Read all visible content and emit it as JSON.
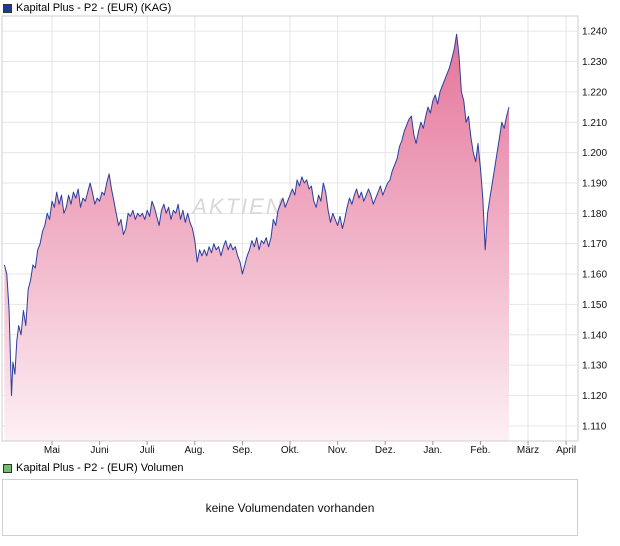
{
  "colors": {
    "line": "#2a3f9e",
    "fill_top": "#e4749a",
    "fill_bottom": "#fdf0f5",
    "price_swatch": "#1f3a93",
    "volume_swatch": "#6fbf6f",
    "grid": "#e6e6e6"
  },
  "price_legend": {
    "label": "Kapital Plus - P2 - (EUR) (KAG)"
  },
  "volume_legend": {
    "label": "Kapital Plus - P2 - (EUR) Volumen"
  },
  "volume_panel": {
    "message": "keine Volumendaten vorhanden"
  },
  "watermark": {
    "text": "AKTIEN"
  },
  "chart_data": {
    "type": "area",
    "title": "Kapital Plus - P2 - (EUR) (KAG)",
    "xlabel": "",
    "ylabel": "",
    "ylim": [
      1.105,
      1.245
    ],
    "grid": true,
    "y_ticks": [
      "1.110",
      "1.120",
      "1.130",
      "1.140",
      "1.150",
      "1.160",
      "1.170",
      "1.180",
      "1.190",
      "1.200",
      "1.210",
      "1.220",
      "1.230",
      "1.240"
    ],
    "x_ticks": [
      "Mai",
      "Juni",
      "Juli",
      "Aug.",
      "Sep.",
      "Okt.",
      "Nov.",
      "Dez.",
      "Jan.",
      "Feb.",
      "März",
      "April"
    ],
    "x_tick_positions": [
      0.5,
      1.5,
      2.5,
      3.5,
      4.5,
      5.5,
      6.5,
      7.5,
      8.5,
      9.5,
      10.5,
      11.3
    ],
    "x_range": [
      -0.55,
      11.55
    ],
    "series": [
      {
        "points": [
          [
            -0.5,
            1.163
          ],
          [
            -0.45,
            1.16
          ],
          [
            -0.4,
            1.148
          ],
          [
            -0.35,
            1.12
          ],
          [
            -0.32,
            1.131
          ],
          [
            -0.28,
            1.127
          ],
          [
            -0.24,
            1.138
          ],
          [
            -0.2,
            1.143
          ],
          [
            -0.15,
            1.14
          ],
          [
            -0.1,
            1.148
          ],
          [
            -0.05,
            1.143
          ],
          [
            0.0,
            1.155
          ],
          [
            0.05,
            1.158
          ],
          [
            0.1,
            1.163
          ],
          [
            0.15,
            1.162
          ],
          [
            0.2,
            1.168
          ],
          [
            0.25,
            1.17
          ],
          [
            0.3,
            1.174
          ],
          [
            0.35,
            1.176
          ],
          [
            0.4,
            1.18
          ],
          [
            0.45,
            1.178
          ],
          [
            0.5,
            1.184
          ],
          [
            0.55,
            1.182
          ],
          [
            0.6,
            1.187
          ],
          [
            0.65,
            1.183
          ],
          [
            0.7,
            1.186
          ],
          [
            0.75,
            1.18
          ],
          [
            0.8,
            1.182
          ],
          [
            0.85,
            1.186
          ],
          [
            0.9,
            1.183
          ],
          [
            0.95,
            1.187
          ],
          [
            1.0,
            1.185
          ],
          [
            1.05,
            1.188
          ],
          [
            1.1,
            1.182
          ],
          [
            1.15,
            1.185
          ],
          [
            1.2,
            1.184
          ],
          [
            1.25,
            1.187
          ],
          [
            1.3,
            1.19
          ],
          [
            1.35,
            1.187
          ],
          [
            1.4,
            1.183
          ],
          [
            1.45,
            1.185
          ],
          [
            1.5,
            1.184
          ],
          [
            1.55,
            1.187
          ],
          [
            1.6,
            1.186
          ],
          [
            1.65,
            1.19
          ],
          [
            1.7,
            1.193
          ],
          [
            1.75,
            1.188
          ],
          [
            1.8,
            1.184
          ],
          [
            1.85,
            1.18
          ],
          [
            1.9,
            1.176
          ],
          [
            1.95,
            1.178
          ],
          [
            2.0,
            1.173
          ],
          [
            2.05,
            1.175
          ],
          [
            2.1,
            1.18
          ],
          [
            2.15,
            1.179
          ],
          [
            2.2,
            1.181
          ],
          [
            2.25,
            1.178
          ],
          [
            2.3,
            1.18
          ],
          [
            2.35,
            1.179
          ],
          [
            2.4,
            1.18
          ],
          [
            2.45,
            1.178
          ],
          [
            2.5,
            1.181
          ],
          [
            2.55,
            1.179
          ],
          [
            2.6,
            1.184
          ],
          [
            2.65,
            1.182
          ],
          [
            2.7,
            1.179
          ],
          [
            2.75,
            1.176
          ],
          [
            2.8,
            1.181
          ],
          [
            2.85,
            1.183
          ],
          [
            2.9,
            1.18
          ],
          [
            2.95,
            1.182
          ],
          [
            3.0,
            1.178
          ],
          [
            3.05,
            1.181
          ],
          [
            3.1,
            1.18
          ],
          [
            3.15,
            1.183
          ],
          [
            3.2,
            1.178
          ],
          [
            3.25,
            1.181
          ],
          [
            3.3,
            1.177
          ],
          [
            3.35,
            1.18
          ],
          [
            3.4,
            1.177
          ],
          [
            3.45,
            1.175
          ],
          [
            3.5,
            1.171
          ],
          [
            3.55,
            1.164
          ],
          [
            3.6,
            1.168
          ],
          [
            3.65,
            1.166
          ],
          [
            3.7,
            1.168
          ],
          [
            3.75,
            1.166
          ],
          [
            3.8,
            1.169
          ],
          [
            3.85,
            1.167
          ],
          [
            3.9,
            1.17
          ],
          [
            3.95,
            1.168
          ],
          [
            4.0,
            1.169
          ],
          [
            4.05,
            1.166
          ],
          [
            4.1,
            1.169
          ],
          [
            4.15,
            1.171
          ],
          [
            4.2,
            1.168
          ],
          [
            4.25,
            1.17
          ],
          [
            4.3,
            1.168
          ],
          [
            4.35,
            1.169
          ],
          [
            4.4,
            1.166
          ],
          [
            4.45,
            1.164
          ],
          [
            4.5,
            1.16
          ],
          [
            4.55,
            1.163
          ],
          [
            4.6,
            1.166
          ],
          [
            4.65,
            1.168
          ],
          [
            4.7,
            1.171
          ],
          [
            4.75,
            1.169
          ],
          [
            4.8,
            1.172
          ],
          [
            4.85,
            1.168
          ],
          [
            4.9,
            1.171
          ],
          [
            4.95,
            1.17
          ],
          [
            5.0,
            1.172
          ],
          [
            5.05,
            1.169
          ],
          [
            5.1,
            1.172
          ],
          [
            5.15,
            1.178
          ],
          [
            5.2,
            1.176
          ],
          [
            5.25,
            1.181
          ],
          [
            5.3,
            1.183
          ],
          [
            5.35,
            1.185
          ],
          [
            5.4,
            1.182
          ],
          [
            5.45,
            1.184
          ],
          [
            5.5,
            1.186
          ],
          [
            5.55,
            1.188
          ],
          [
            5.6,
            1.186
          ],
          [
            5.65,
            1.191
          ],
          [
            5.7,
            1.189
          ],
          [
            5.75,
            1.192
          ],
          [
            5.8,
            1.19
          ],
          [
            5.85,
            1.191
          ],
          [
            5.9,
            1.188
          ],
          [
            5.95,
            1.189
          ],
          [
            6.0,
            1.184
          ],
          [
            6.05,
            1.182
          ],
          [
            6.1,
            1.186
          ],
          [
            6.15,
            1.184
          ],
          [
            6.2,
            1.19
          ],
          [
            6.25,
            1.187
          ],
          [
            6.3,
            1.181
          ],
          [
            6.35,
            1.177
          ],
          [
            6.4,
            1.18
          ],
          [
            6.45,
            1.178
          ],
          [
            6.5,
            1.176
          ],
          [
            6.55,
            1.179
          ],
          [
            6.6,
            1.175
          ],
          [
            6.65,
            1.178
          ],
          [
            6.7,
            1.182
          ],
          [
            6.75,
            1.185
          ],
          [
            6.8,
            1.183
          ],
          [
            6.85,
            1.186
          ],
          [
            6.9,
            1.188
          ],
          [
            6.95,
            1.185
          ],
          [
            7.0,
            1.187
          ],
          [
            7.05,
            1.184
          ],
          [
            7.1,
            1.186
          ],
          [
            7.15,
            1.188
          ],
          [
            7.2,
            1.186
          ],
          [
            7.25,
            1.183
          ],
          [
            7.3,
            1.185
          ],
          [
            7.35,
            1.187
          ],
          [
            7.4,
            1.189
          ],
          [
            7.45,
            1.186
          ],
          [
            7.5,
            1.188
          ],
          [
            7.55,
            1.19
          ],
          [
            7.6,
            1.191
          ],
          [
            7.65,
            1.194
          ],
          [
            7.7,
            1.196
          ],
          [
            7.75,
            1.198
          ],
          [
            7.8,
            1.202
          ],
          [
            7.85,
            1.204
          ],
          [
            7.9,
            1.207
          ],
          [
            7.95,
            1.209
          ],
          [
            8.0,
            1.211
          ],
          [
            8.05,
            1.212
          ],
          [
            8.1,
            1.206
          ],
          [
            8.15,
            1.203
          ],
          [
            8.2,
            1.207
          ],
          [
            8.25,
            1.21
          ],
          [
            8.3,
            1.208
          ],
          [
            8.35,
            1.212
          ],
          [
            8.4,
            1.215
          ],
          [
            8.45,
            1.213
          ],
          [
            8.5,
            1.217
          ],
          [
            8.55,
            1.219
          ],
          [
            8.6,
            1.216
          ],
          [
            8.65,
            1.22
          ],
          [
            8.7,
            1.222
          ],
          [
            8.75,
            1.224
          ],
          [
            8.8,
            1.226
          ],
          [
            8.85,
            1.228
          ],
          [
            8.9,
            1.231
          ],
          [
            8.95,
            1.234
          ],
          [
            9.0,
            1.239
          ],
          [
            9.05,
            1.232
          ],
          [
            9.1,
            1.22
          ],
          [
            9.15,
            1.217
          ],
          [
            9.2,
            1.21
          ],
          [
            9.25,
            1.212
          ],
          [
            9.3,
            1.205
          ],
          [
            9.35,
            1.2
          ],
          [
            9.4,
            1.197
          ],
          [
            9.45,
            1.203
          ],
          [
            9.5,
            1.195
          ],
          [
            9.55,
            1.185
          ],
          [
            9.6,
            1.168
          ],
          [
            9.65,
            1.18
          ],
          [
            9.7,
            1.185
          ],
          [
            9.75,
            1.19
          ],
          [
            9.8,
            1.195
          ],
          [
            9.85,
            1.2
          ],
          [
            9.9,
            1.205
          ],
          [
            9.95,
            1.21
          ],
          [
            10.0,
            1.208
          ],
          [
            10.05,
            1.212
          ],
          [
            10.1,
            1.215
          ]
        ]
      }
    ]
  }
}
